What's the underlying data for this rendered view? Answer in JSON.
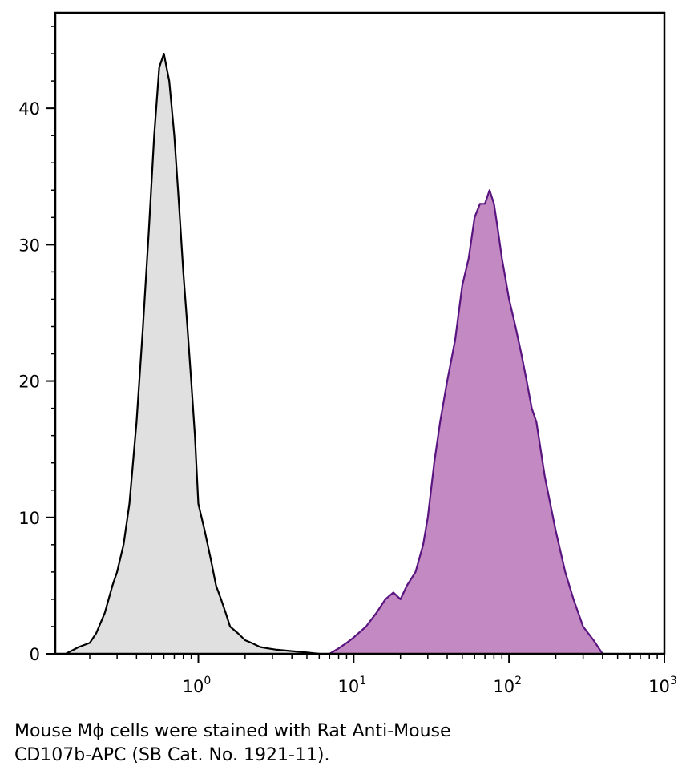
{
  "chart_data": {
    "type": "area",
    "title": "",
    "xlabel": "",
    "ylabel": "",
    "x_scale": "log",
    "xlim": [
      0.12,
      1000
    ],
    "ylim": [
      0,
      47
    ],
    "x_ticks": [
      {
        "value": 1,
        "base": "10",
        "exp": "0"
      },
      {
        "value": 10,
        "base": "10",
        "exp": "1"
      },
      {
        "value": 100,
        "base": "10",
        "exp": "2"
      },
      {
        "value": 1000,
        "base": "10",
        "exp": "3"
      }
    ],
    "y_ticks": [
      0,
      10,
      20,
      30,
      40
    ],
    "grid": false,
    "series": [
      {
        "name": "",
        "fill": "#e0e0e0",
        "stroke": "#000000",
        "x": [
          0.14,
          0.17,
          0.2,
          0.22,
          0.25,
          0.28,
          0.3,
          0.33,
          0.36,
          0.4,
          0.44,
          0.48,
          0.52,
          0.56,
          0.6,
          0.65,
          0.7,
          0.75,
          0.8,
          0.85,
          0.9,
          0.95,
          1.0,
          1.1,
          1.2,
          1.3,
          1.4,
          1.5,
          1.6,
          1.8,
          2.0,
          2.2,
          2.5,
          2.8,
          3.2,
          4.0,
          5.0,
          6.0
        ],
        "y": [
          0,
          0.5,
          0.8,
          1.5,
          3,
          5,
          6,
          8,
          11,
          17,
          24,
          31,
          38,
          43,
          44,
          42,
          38,
          33,
          28,
          24,
          20,
          16,
          11,
          9,
          7,
          5,
          4,
          3,
          2,
          1.5,
          1,
          0.8,
          0.5,
          0.4,
          0.3,
          0.2,
          0.1,
          0
        ]
      },
      {
        "name": "",
        "fill": "#c289c2",
        "stroke": "#5a1480",
        "x": [
          7,
          8,
          9,
          10,
          12,
          14,
          16,
          18,
          20,
          22,
          25,
          28,
          30,
          33,
          36,
          40,
          45,
          50,
          55,
          60,
          65,
          70,
          75,
          80,
          85,
          90,
          100,
          110,
          120,
          130,
          140,
          150,
          170,
          200,
          230,
          260,
          300,
          350,
          400
        ],
        "y": [
          0,
          0.4,
          0.8,
          1.2,
          2,
          3,
          4,
          4.5,
          4,
          5,
          6,
          8,
          10,
          14,
          17,
          20,
          23,
          27,
          29,
          32,
          33,
          33,
          34,
          33,
          31,
          29,
          26,
          24,
          22,
          20,
          18,
          17,
          13,
          9,
          6,
          4,
          2,
          1,
          0
        ]
      }
    ]
  },
  "caption": {
    "line1": "Mouse Mϕ cells were stained with Rat Anti-Mouse",
    "line2": "CD107b-APC (SB Cat. No. 1921-11)."
  }
}
